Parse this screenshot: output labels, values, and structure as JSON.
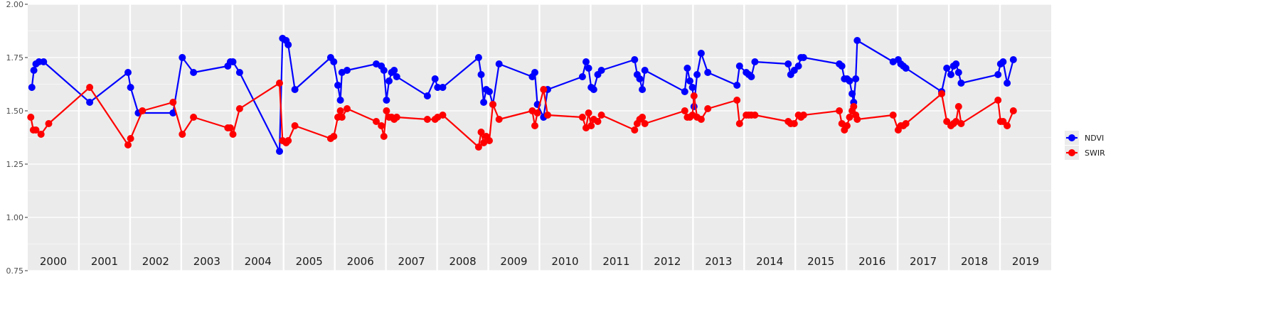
{
  "chart_data": {
    "type": "line",
    "title": "",
    "xlabel": "",
    "ylabel": "",
    "ylim": [
      0.75,
      2.0
    ],
    "yticks": [
      "0.75",
      "1.00",
      "1.25",
      "1.50",
      "1.75",
      "2.00"
    ],
    "ytick_values": [
      0.75,
      1.0,
      1.25,
      1.5,
      1.75,
      2.0
    ],
    "xlim": [
      2000,
      2020
    ],
    "year_labels": [
      "2000",
      "2001",
      "2002",
      "2003",
      "2004",
      "2005",
      "2006",
      "2007",
      "2008",
      "2009",
      "2010",
      "2011",
      "2012",
      "2013",
      "2014",
      "2015",
      "2016",
      "2017",
      "2018",
      "2019"
    ],
    "grid": true,
    "legend_position": "right",
    "series": [
      {
        "name": "NDVI",
        "color": "#0000ff",
        "points": [
          [
            2000.08,
            1.61
          ],
          [
            2000.12,
            1.69
          ],
          [
            2000.16,
            1.72
          ],
          [
            2000.22,
            1.73
          ],
          [
            2000.31,
            1.73
          ],
          [
            2001.21,
            1.54
          ],
          [
            2001.96,
            1.68
          ],
          [
            2002.01,
            1.61
          ],
          [
            2002.16,
            1.49
          ],
          [
            2002.84,
            1.49
          ],
          [
            2003.02,
            1.75
          ],
          [
            2003.24,
            1.68
          ],
          [
            2003.91,
            1.71
          ],
          [
            2003.96,
            1.73
          ],
          [
            2004.01,
            1.73
          ],
          [
            2004.14,
            1.68
          ],
          [
            2004.92,
            1.31
          ],
          [
            2004.98,
            1.84
          ],
          [
            2005.05,
            1.83
          ],
          [
            2005.09,
            1.81
          ],
          [
            2005.22,
            1.6
          ],
          [
            2005.92,
            1.75
          ],
          [
            2005.98,
            1.73
          ],
          [
            2006.06,
            1.62
          ],
          [
            2006.11,
            1.55
          ],
          [
            2006.14,
            1.68
          ],
          [
            2006.24,
            1.69
          ],
          [
            2006.81,
            1.72
          ],
          [
            2006.91,
            1.71
          ],
          [
            2006.96,
            1.69
          ],
          [
            2007.01,
            1.55
          ],
          [
            2007.06,
            1.64
          ],
          [
            2007.11,
            1.68
          ],
          [
            2007.16,
            1.69
          ],
          [
            2007.21,
            1.66
          ],
          [
            2007.81,
            1.57
          ],
          [
            2007.96,
            1.65
          ],
          [
            2008.01,
            1.61
          ],
          [
            2008.11,
            1.61
          ],
          [
            2008.81,
            1.75
          ],
          [
            2008.86,
            1.67
          ],
          [
            2008.91,
            1.54
          ],
          [
            2008.96,
            1.6
          ],
          [
            2009.02,
            1.59
          ],
          [
            2009.09,
            1.53
          ],
          [
            2009.21,
            1.72
          ],
          [
            2009.86,
            1.66
          ],
          [
            2009.91,
            1.68
          ],
          [
            2009.96,
            1.53
          ],
          [
            2010.08,
            1.47
          ],
          [
            2010.16,
            1.6
          ],
          [
            2010.84,
            1.66
          ],
          [
            2010.91,
            1.73
          ],
          [
            2010.96,
            1.7
          ],
          [
            2011.01,
            1.61
          ],
          [
            2011.06,
            1.6
          ],
          [
            2011.14,
            1.67
          ],
          [
            2011.21,
            1.69
          ],
          [
            2011.86,
            1.74
          ],
          [
            2011.91,
            1.67
          ],
          [
            2011.96,
            1.65
          ],
          [
            2012.01,
            1.6
          ],
          [
            2012.06,
            1.69
          ],
          [
            2012.84,
            1.59
          ],
          [
            2012.89,
            1.7
          ],
          [
            2012.94,
            1.64
          ],
          [
            2012.99,
            1.61
          ],
          [
            2013.02,
            1.52
          ],
          [
            2013.08,
            1.67
          ],
          [
            2013.16,
            1.77
          ],
          [
            2013.29,
            1.68
          ],
          [
            2013.86,
            1.62
          ],
          [
            2013.91,
            1.71
          ],
          [
            2014.04,
            1.68
          ],
          [
            2014.09,
            1.67
          ],
          [
            2014.14,
            1.66
          ],
          [
            2014.21,
            1.73
          ],
          [
            2014.86,
            1.72
          ],
          [
            2014.91,
            1.67
          ],
          [
            2014.98,
            1.69
          ],
          [
            2015.06,
            1.71
          ],
          [
            2015.11,
            1.75
          ],
          [
            2015.16,
            1.75
          ],
          [
            2015.86,
            1.72
          ],
          [
            2015.91,
            1.71
          ],
          [
            2015.96,
            1.65
          ],
          [
            2016.01,
            1.65
          ],
          [
            2016.06,
            1.64
          ],
          [
            2016.11,
            1.58
          ],
          [
            2016.14,
            1.54
          ],
          [
            2016.18,
            1.65
          ],
          [
            2016.21,
            1.83
          ],
          [
            2016.91,
            1.73
          ],
          [
            2017.01,
            1.74
          ],
          [
            2017.06,
            1.72
          ],
          [
            2017.11,
            1.71
          ],
          [
            2017.16,
            1.7
          ],
          [
            2017.86,
            1.59
          ],
          [
            2017.96,
            1.7
          ],
          [
            2018.04,
            1.67
          ],
          [
            2018.09,
            1.71
          ],
          [
            2018.14,
            1.72
          ],
          [
            2018.19,
            1.68
          ],
          [
            2018.24,
            1.63
          ],
          [
            2018.96,
            1.67
          ],
          [
            2019.01,
            1.72
          ],
          [
            2019.06,
            1.73
          ],
          [
            2019.14,
            1.63
          ],
          [
            2019.26,
            1.74
          ]
        ]
      },
      {
        "name": "SWIR",
        "color": "#ff0000",
        "points": [
          [
            2000.06,
            1.47
          ],
          [
            2000.11,
            1.41
          ],
          [
            2000.16,
            1.41
          ],
          [
            2000.26,
            1.39
          ],
          [
            2000.41,
            1.44
          ],
          [
            2001.21,
            1.61
          ],
          [
            2001.96,
            1.34
          ],
          [
            2002.01,
            1.37
          ],
          [
            2002.24,
            1.5
          ],
          [
            2002.84,
            1.54
          ],
          [
            2003.02,
            1.39
          ],
          [
            2003.24,
            1.47
          ],
          [
            2003.91,
            1.42
          ],
          [
            2003.96,
            1.42
          ],
          [
            2004.01,
            1.39
          ],
          [
            2004.14,
            1.51
          ],
          [
            2004.92,
            1.63
          ],
          [
            2004.98,
            1.36
          ],
          [
            2005.05,
            1.35
          ],
          [
            2005.09,
            1.36
          ],
          [
            2005.22,
            1.43
          ],
          [
            2005.92,
            1.37
          ],
          [
            2005.98,
            1.38
          ],
          [
            2006.06,
            1.47
          ],
          [
            2006.11,
            1.5
          ],
          [
            2006.14,
            1.47
          ],
          [
            2006.24,
            1.51
          ],
          [
            2006.81,
            1.45
          ],
          [
            2006.91,
            1.43
          ],
          [
            2006.96,
            1.38
          ],
          [
            2007.01,
            1.5
          ],
          [
            2007.06,
            1.47
          ],
          [
            2007.11,
            1.47
          ],
          [
            2007.16,
            1.46
          ],
          [
            2007.21,
            1.47
          ],
          [
            2007.81,
            1.46
          ],
          [
            2007.96,
            1.46
          ],
          [
            2008.01,
            1.47
          ],
          [
            2008.11,
            1.48
          ],
          [
            2008.81,
            1.33
          ],
          [
            2008.86,
            1.4
          ],
          [
            2008.91,
            1.35
          ],
          [
            2008.96,
            1.38
          ],
          [
            2009.02,
            1.36
          ],
          [
            2009.09,
            1.53
          ],
          [
            2009.21,
            1.46
          ],
          [
            2009.86,
            1.5
          ],
          [
            2009.91,
            1.43
          ],
          [
            2009.96,
            1.49
          ],
          [
            2010.08,
            1.6
          ],
          [
            2010.16,
            1.48
          ],
          [
            2010.84,
            1.47
          ],
          [
            2010.91,
            1.42
          ],
          [
            2010.96,
            1.49
          ],
          [
            2011.01,
            1.43
          ],
          [
            2011.06,
            1.46
          ],
          [
            2011.14,
            1.45
          ],
          [
            2011.21,
            1.48
          ],
          [
            2011.86,
            1.41
          ],
          [
            2011.91,
            1.44
          ],
          [
            2011.96,
            1.46
          ],
          [
            2012.01,
            1.47
          ],
          [
            2012.06,
            1.44
          ],
          [
            2012.84,
            1.5
          ],
          [
            2012.89,
            1.47
          ],
          [
            2012.94,
            1.47
          ],
          [
            2012.99,
            1.48
          ],
          [
            2013.02,
            1.57
          ],
          [
            2013.08,
            1.47
          ],
          [
            2013.16,
            1.46
          ],
          [
            2013.29,
            1.51
          ],
          [
            2013.86,
            1.55
          ],
          [
            2013.91,
            1.44
          ],
          [
            2014.04,
            1.48
          ],
          [
            2014.09,
            1.48
          ],
          [
            2014.14,
            1.48
          ],
          [
            2014.21,
            1.48
          ],
          [
            2014.86,
            1.45
          ],
          [
            2014.91,
            1.44
          ],
          [
            2014.98,
            1.44
          ],
          [
            2015.06,
            1.48
          ],
          [
            2015.11,
            1.47
          ],
          [
            2015.16,
            1.48
          ],
          [
            2015.86,
            1.5
          ],
          [
            2015.91,
            1.44
          ],
          [
            2015.96,
            1.41
          ],
          [
            2016.01,
            1.43
          ],
          [
            2016.06,
            1.47
          ],
          [
            2016.11,
            1.5
          ],
          [
            2016.14,
            1.52
          ],
          [
            2016.18,
            1.48
          ],
          [
            2016.21,
            1.46
          ],
          [
            2016.91,
            1.48
          ],
          [
            2017.01,
            1.41
          ],
          [
            2017.06,
            1.43
          ],
          [
            2017.11,
            1.43
          ],
          [
            2017.16,
            1.44
          ],
          [
            2017.86,
            1.58
          ],
          [
            2017.96,
            1.45
          ],
          [
            2018.04,
            1.43
          ],
          [
            2018.09,
            1.44
          ],
          [
            2018.14,
            1.45
          ],
          [
            2018.19,
            1.52
          ],
          [
            2018.24,
            1.44
          ],
          [
            2018.96,
            1.55
          ],
          [
            2019.01,
            1.45
          ],
          [
            2019.06,
            1.45
          ],
          [
            2019.14,
            1.43
          ],
          [
            2019.26,
            1.5
          ]
        ]
      }
    ]
  }
}
